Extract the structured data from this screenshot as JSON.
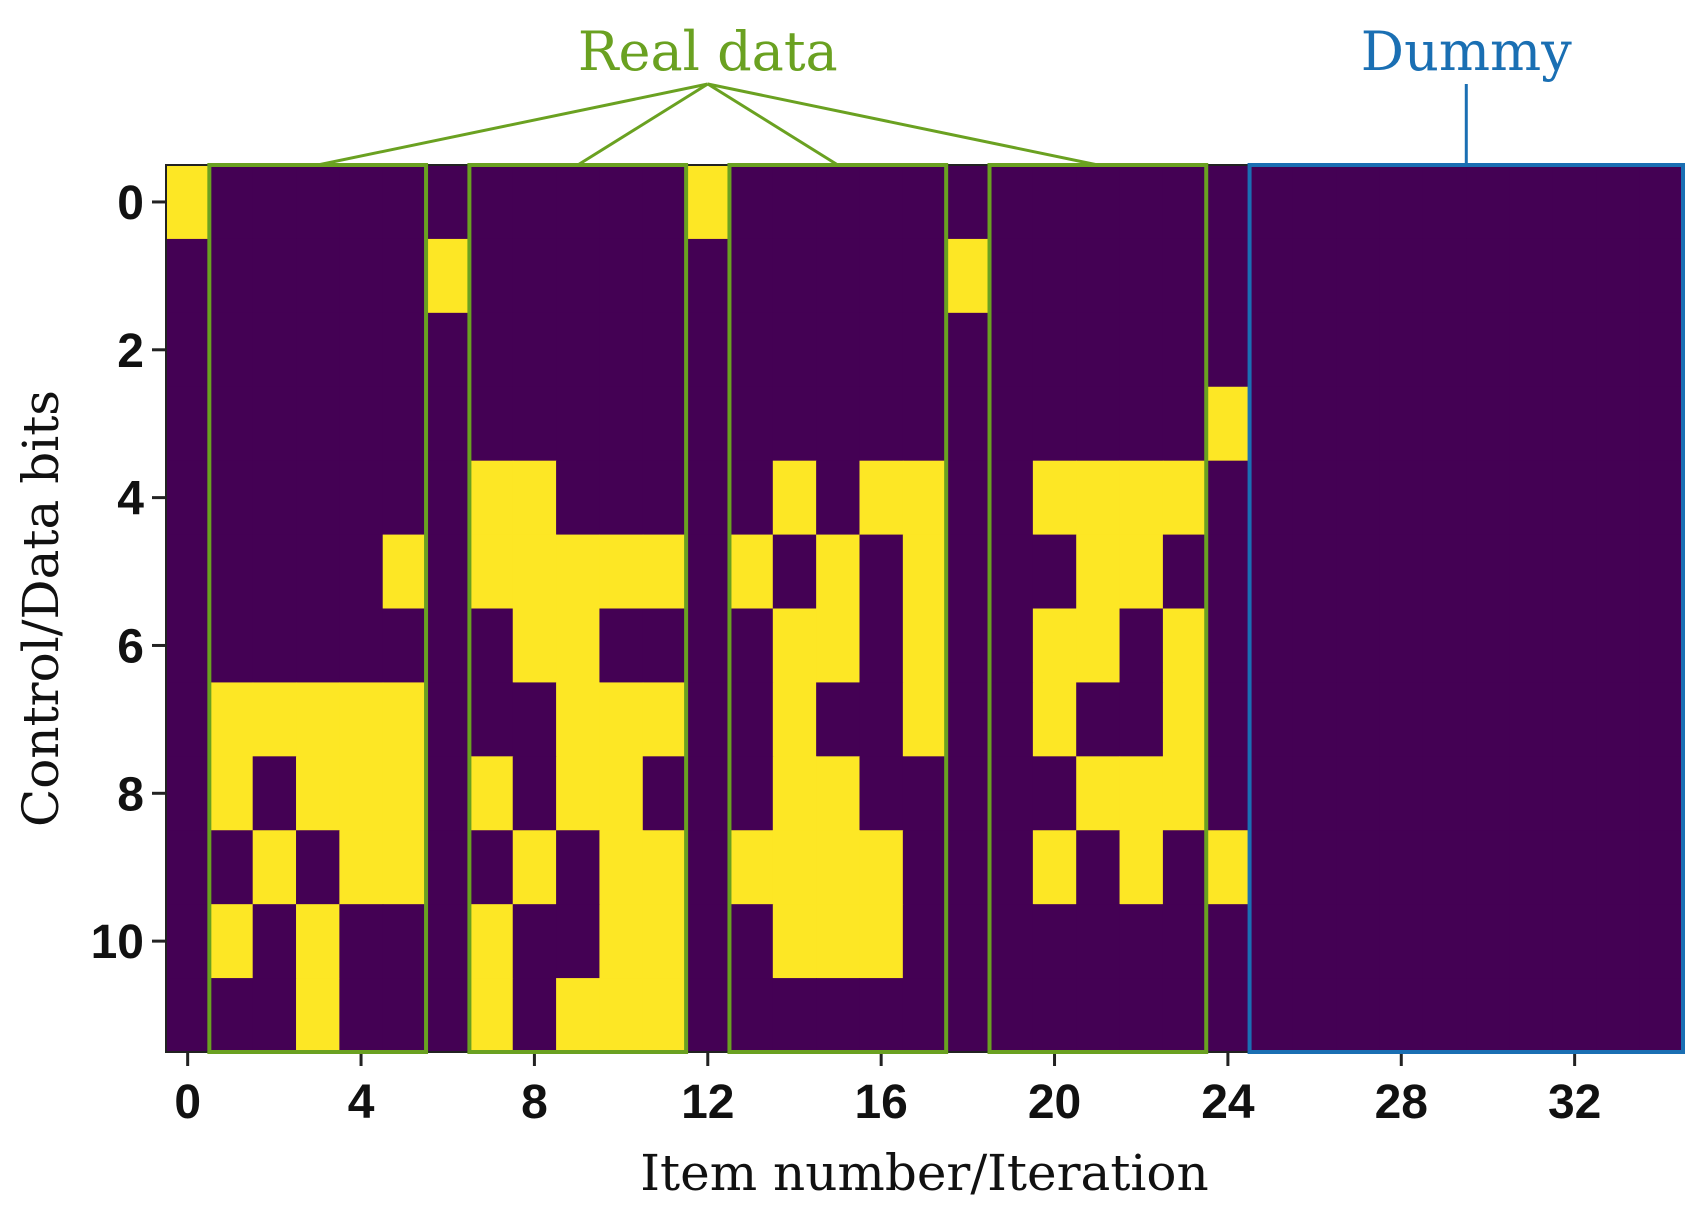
{
  "chart_data": {
    "type": "heatmap",
    "xlabel": "Item number/Iteration",
    "ylabel": "Control/Data bits",
    "x_ticks": [
      0,
      4,
      8,
      12,
      16,
      20,
      24,
      28,
      32
    ],
    "y_ticks": [
      0,
      2,
      4,
      6,
      8,
      10
    ],
    "xlim": [
      -0.5,
      34.5
    ],
    "ylim": [
      11.5,
      -0.5
    ],
    "n_columns": 35,
    "n_rows": 12,
    "colors": {
      "low": "#440154",
      "high": "#fde725"
    },
    "grid": false,
    "values": [
      [
        1,
        0,
        0,
        0,
        0,
        0,
        0,
        0,
        0,
        0,
        0,
        0,
        1,
        0,
        0,
        0,
        0,
        0,
        0,
        0,
        0,
        0,
        0,
        0,
        0,
        0,
        0,
        0,
        0,
        0,
        0,
        0,
        0,
        0,
        0
      ],
      [
        0,
        0,
        0,
        0,
        0,
        0,
        1,
        0,
        0,
        0,
        0,
        0,
        0,
        0,
        0,
        0,
        0,
        0,
        1,
        0,
        0,
        0,
        0,
        0,
        0,
        0,
        0,
        0,
        0,
        0,
        0,
        0,
        0,
        0,
        0
      ],
      [
        0,
        0,
        0,
        0,
        0,
        0,
        0,
        0,
        0,
        0,
        0,
        0,
        0,
        0,
        0,
        0,
        0,
        0,
        0,
        0,
        0,
        0,
        0,
        0,
        0,
        0,
        0,
        0,
        0,
        0,
        0,
        0,
        0,
        0,
        0
      ],
      [
        0,
        0,
        0,
        0,
        0,
        0,
        0,
        0,
        0,
        0,
        0,
        0,
        0,
        0,
        0,
        0,
        0,
        0,
        0,
        0,
        0,
        0,
        0,
        0,
        1,
        0,
        0,
        0,
        0,
        0,
        0,
        0,
        0,
        0,
        0
      ],
      [
        0,
        0,
        0,
        0,
        0,
        0,
        0,
        1,
        1,
        0,
        0,
        0,
        0,
        0,
        1,
        0,
        1,
        1,
        0,
        0,
        1,
        1,
        1,
        1,
        0,
        0,
        0,
        0,
        0,
        0,
        0,
        0,
        0,
        0,
        0
      ],
      [
        0,
        0,
        0,
        0,
        0,
        1,
        0,
        1,
        1,
        1,
        1,
        1,
        0,
        1,
        0,
        1,
        0,
        1,
        0,
        0,
        0,
        1,
        1,
        0,
        0,
        0,
        0,
        0,
        0,
        0,
        0,
        0,
        0,
        0,
        0
      ],
      [
        0,
        0,
        0,
        0,
        0,
        0,
        0,
        0,
        1,
        1,
        0,
        0,
        0,
        0,
        1,
        1,
        0,
        1,
        0,
        0,
        1,
        1,
        0,
        1,
        0,
        0,
        0,
        0,
        0,
        0,
        0,
        0,
        0,
        0,
        0
      ],
      [
        0,
        1,
        1,
        1,
        1,
        1,
        0,
        0,
        0,
        1,
        1,
        1,
        0,
        0,
        1,
        0,
        0,
        1,
        0,
        0,
        1,
        0,
        0,
        1,
        0,
        0,
        0,
        0,
        0,
        0,
        0,
        0,
        0,
        0,
        0
      ],
      [
        0,
        1,
        0,
        1,
        1,
        1,
        0,
        1,
        0,
        1,
        1,
        0,
        0,
        0,
        1,
        1,
        0,
        0,
        0,
        0,
        0,
        1,
        1,
        1,
        0,
        0,
        0,
        0,
        0,
        0,
        0,
        0,
        0,
        0,
        0
      ],
      [
        0,
        0,
        1,
        0,
        1,
        1,
        0,
        0,
        1,
        0,
        1,
        1,
        0,
        1,
        1,
        1,
        1,
        0,
        0,
        0,
        1,
        0,
        1,
        0,
        1,
        0,
        0,
        0,
        0,
        0,
        0,
        0,
        0,
        0,
        0
      ],
      [
        0,
        1,
        0,
        1,
        0,
        0,
        0,
        1,
        0,
        0,
        1,
        1,
        0,
        0,
        1,
        1,
        1,
        0,
        0,
        0,
        0,
        0,
        0,
        0,
        0,
        0,
        0,
        0,
        0,
        0,
        0,
        0,
        0,
        0,
        0
      ],
      [
        0,
        0,
        0,
        1,
        0,
        0,
        0,
        1,
        0,
        1,
        1,
        1,
        0,
        0,
        0,
        0,
        0,
        0,
        0,
        0,
        0,
        0,
        0,
        0,
        0,
        0,
        0,
        0,
        0,
        0,
        0,
        0,
        0,
        0,
        0
      ]
    ],
    "annotations": {
      "real_data": {
        "label": "Real data",
        "color": "#6aa121",
        "boxes": [
          [
            1,
            5
          ],
          [
            7,
            11
          ],
          [
            13,
            17
          ],
          [
            19,
            23
          ]
        ]
      },
      "dummy": {
        "label": "Dummy",
        "color": "#1a6fb3",
        "boxes": [
          [
            25,
            34
          ]
        ]
      }
    }
  }
}
